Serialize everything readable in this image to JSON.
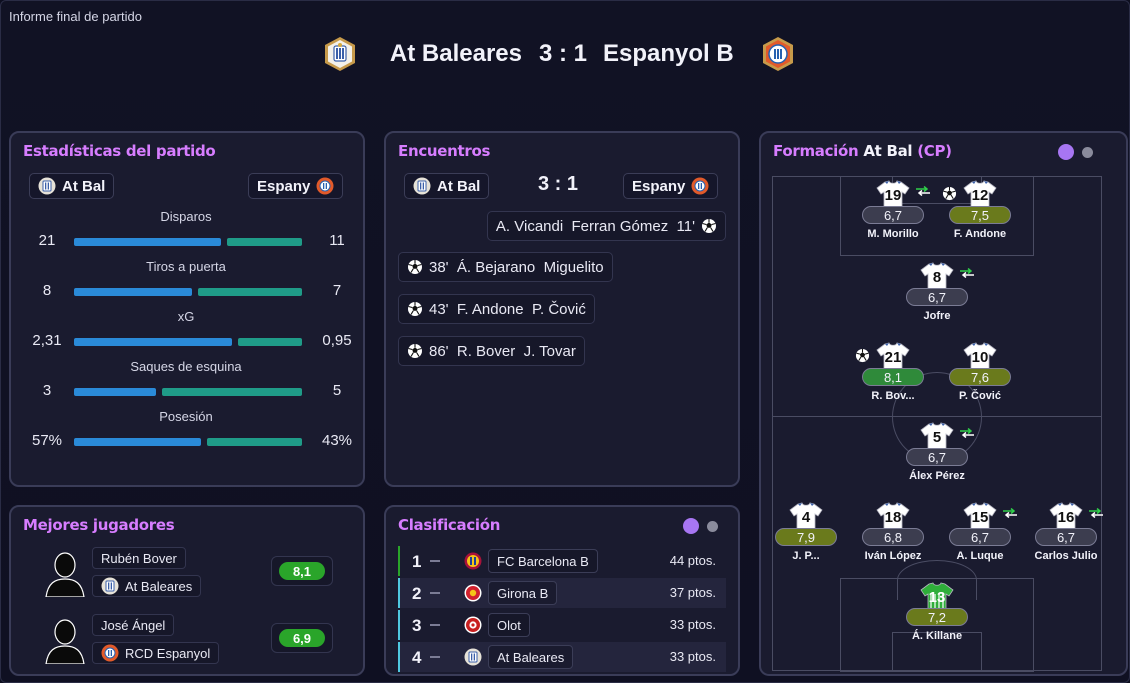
{
  "window_title": "Informe final de partido",
  "header": {
    "home_team": "At Baleares",
    "score": "3 : 1",
    "away_team": "Espanyol B"
  },
  "stats_panel": {
    "title": "Estadísticas del partido",
    "home_chip": "At Bal",
    "away_chip": "Espany",
    "stats": [
      {
        "label": "Disparos",
        "home": "21",
        "away": "11",
        "home_share": 0.66,
        "away_share": 0.34
      },
      {
        "label": "Tiros a puerta",
        "home": "8",
        "away": "7",
        "home_share": 0.53,
        "away_share": 0.47
      },
      {
        "label": "xG",
        "home": "2,31",
        "away": "0,95",
        "home_share": 0.71,
        "away_share": 0.29
      },
      {
        "label": "Saques de esquina",
        "home": "3",
        "away": "5",
        "home_share": 0.37,
        "away_share": 0.63
      },
      {
        "label": "Posesión",
        "home": "57%",
        "away": "43%",
        "home_share": 0.57,
        "away_share": 0.43
      }
    ]
  },
  "events_panel": {
    "title": "Encuentros",
    "home_chip": "At Bal",
    "score": "3 : 1",
    "away_chip": "Espany",
    "away_events": [
      {
        "text": "A. Vicandi  Ferran Gómez  11'",
        "icon": "ball-icon"
      }
    ],
    "home_events": [
      {
        "text": "38'  Á. Bejarano  Miguelito",
        "icon": "ball-icon"
      },
      {
        "text": "43'  F. Andone  P. Čović",
        "icon": "ball-icon"
      },
      {
        "text": "86'  R. Bover  J. Tovar",
        "icon": "ball-icon"
      }
    ]
  },
  "best_players": {
    "title": "Mejores jugadores",
    "players": [
      {
        "name": "Rubén Bover",
        "team": "At Baleares",
        "rating": "8,1",
        "rating_color": "#2aa52a"
      },
      {
        "name": "José Ángel",
        "team": "RCD Espanyol",
        "rating": "6,9",
        "rating_color": "#2aa52a"
      }
    ]
  },
  "standings": {
    "title": "Clasificación",
    "rows": [
      {
        "pos": "1",
        "team": "FC Barcelona B",
        "pts": "44 ptos.",
        "mark_color": "#2aa52a"
      },
      {
        "pos": "2",
        "team": "Girona B",
        "pts": "37 ptos.",
        "mark_color": "#4fc8e0"
      },
      {
        "pos": "3",
        "team": "Olot",
        "pts": "33 ptos.",
        "mark_color": "#4fc8e0"
      },
      {
        "pos": "4",
        "team": "At Baleares",
        "pts": "33 ptos.",
        "mark_color": "#4fc8e0"
      }
    ]
  },
  "formation": {
    "title_prefix": "Formación",
    "team": "At Bal",
    "role": "(CP)",
    "players": [
      {
        "num": "19",
        "rating": "6,7",
        "name": "M. Morillo",
        "rating_bg": "#3c3d4f",
        "sub": true,
        "goal": false
      },
      {
        "num": "12",
        "rating": "7,5",
        "name": "F. Andone",
        "rating_bg": "#6a7a1c",
        "sub": false,
        "goal": true
      },
      {
        "num": "8",
        "rating": "6,7",
        "name": "Jofre",
        "rating_bg": "#3c3d4f",
        "sub": true,
        "goal": false
      },
      {
        "num": "21",
        "rating": "8,1",
        "name": "R. Bov...",
        "rating_bg": "#2f8a3a",
        "sub": false,
        "goal": true
      },
      {
        "num": "10",
        "rating": "7,6",
        "name": "P. Čović",
        "rating_bg": "#6a7a1c",
        "sub": false,
        "goal": false
      },
      {
        "num": "5",
        "rating": "6,7",
        "name": "Álex Pérez",
        "rating_bg": "#3c3d4f",
        "sub": true,
        "goal": false
      },
      {
        "num": "4",
        "rating": "7,9",
        "name": "J. P...",
        "rating_bg": "#6a7a1c",
        "sub": false,
        "goal": false
      },
      {
        "num": "18",
        "rating": "6,8",
        "name": "Iván López",
        "rating_bg": "#3c3d4f",
        "sub": false,
        "goal": false
      },
      {
        "num": "15",
        "rating": "6,7",
        "name": "A. Luque",
        "rating_bg": "#3c3d4f",
        "sub": true,
        "goal": false
      },
      {
        "num": "16",
        "rating": "6,7",
        "name": "Carlos Julio",
        "rating_bg": "#3c3d4f",
        "sub": true,
        "goal": false
      },
      {
        "num": "13",
        "rating": "7,2",
        "name": "Á. Killane",
        "rating_bg": "#6a7a1c",
        "sub": false,
        "goal": false
      }
    ]
  },
  "colors": {
    "accent": "#d77dff",
    "panel_bg": "#1a1b2f",
    "bar_home": "#2a8ad8",
    "bar_away": "#1f9b88"
  }
}
